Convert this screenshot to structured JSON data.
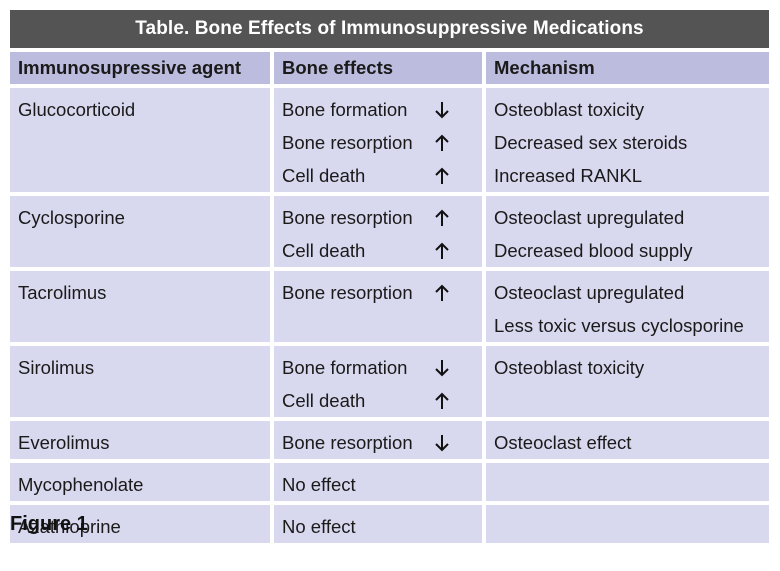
{
  "title": "Table. Bone Effects of Immunosuppressive Medications",
  "headers": {
    "agent": "Immunosupressive agent",
    "effects": "Bone effects",
    "mechanism": "Mechanism"
  },
  "rows": [
    {
      "agent": "Glucocorticoid",
      "effects": [
        {
          "text": "Bone formation",
          "direction": "down"
        },
        {
          "text": "Bone resorption",
          "direction": "up"
        },
        {
          "text": "Cell death",
          "direction": "up"
        }
      ],
      "mechanisms": [
        "Osteoblast toxicity",
        "Decreased sex steroids",
        "Increased RANKL"
      ]
    },
    {
      "agent": "Cyclosporine",
      "effects": [
        {
          "text": "Bone resorption",
          "direction": "up"
        },
        {
          "text": "Cell death",
          "direction": "up"
        }
      ],
      "mechanisms": [
        "Osteoclast upregulated",
        "Decreased blood supply"
      ]
    },
    {
      "agent": "Tacrolimus",
      "effects": [
        {
          "text": "Bone resorption",
          "direction": "up"
        }
      ],
      "mechanisms": [
        "Osteoclast upregulated",
        "Less toxic versus cyclosporine"
      ]
    },
    {
      "agent": "Sirolimus",
      "effects": [
        {
          "text": "Bone formation",
          "direction": "down"
        },
        {
          "text": "Cell death",
          "direction": "up"
        }
      ],
      "mechanisms": [
        "Osteoblast toxicity"
      ]
    },
    {
      "agent": "Everolimus",
      "effects": [
        {
          "text": "Bone resorption",
          "direction": "down"
        }
      ],
      "mechanisms": [
        "Osteoclast effect"
      ]
    },
    {
      "agent": "Mycophenolate",
      "effects": [
        {
          "text": "No effect",
          "direction": ""
        }
      ],
      "mechanisms": []
    },
    {
      "agent": "Azathioprine",
      "effects": [
        {
          "text": "No effect",
          "direction": ""
        }
      ],
      "mechanisms": []
    }
  ],
  "caption": "Figure 1",
  "colors": {
    "title_bg": "#545454",
    "header_bg": "#bcbcde",
    "cell_bg": "#d8d8ee"
  }
}
